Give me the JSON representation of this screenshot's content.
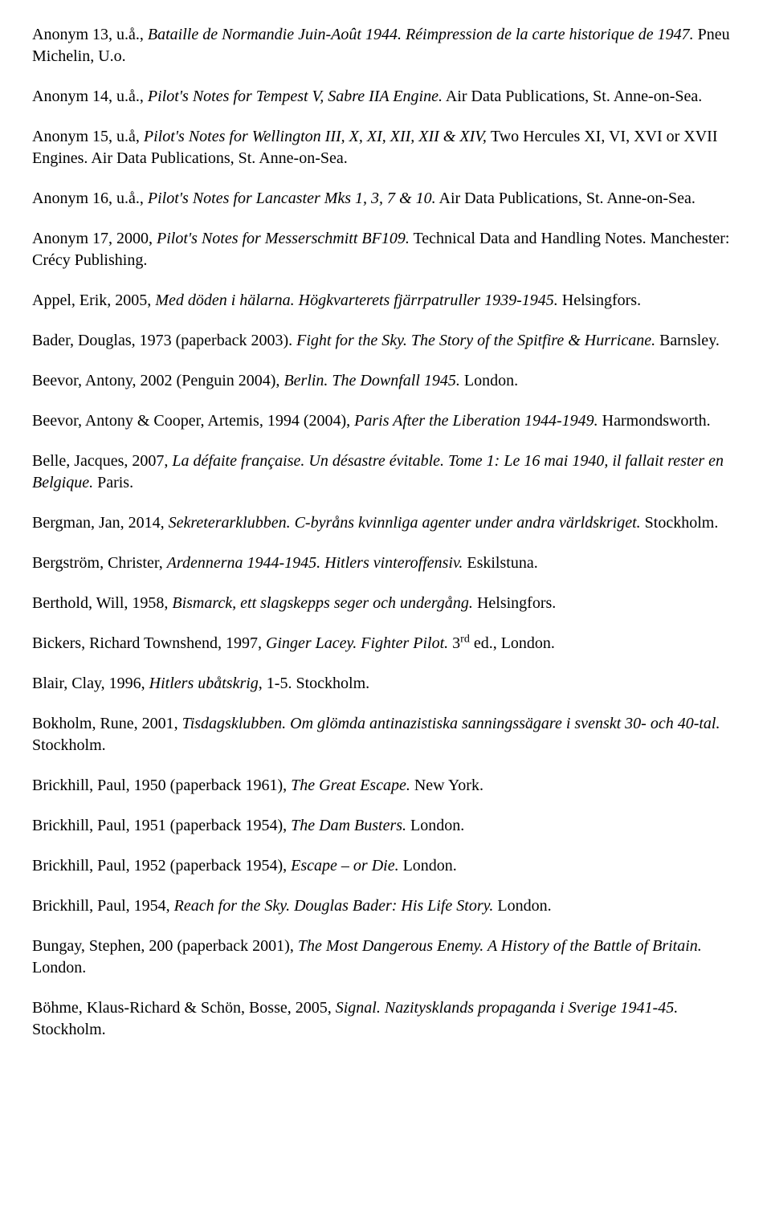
{
  "entries": [
    {
      "segments": [
        {
          "text": "Anonym 13, u.å., ",
          "italic": false
        },
        {
          "text": "Bataille de Normandie Juin-Août 1944. Réimpression de la carte historique de 1947.",
          "italic": true
        },
        {
          "text": " Pneu Michelin, U.o.",
          "italic": false
        }
      ]
    },
    {
      "segments": [
        {
          "text": "Anonym 14, u.å., ",
          "italic": false
        },
        {
          "text": "Pilot's Notes for Tempest V, Sabre IIA Engine.",
          "italic": true
        },
        {
          "text": " Air Data Publications, St. Anne-on-Sea.",
          "italic": false
        }
      ]
    },
    {
      "segments": [
        {
          "text": "Anonym 15, u.å, ",
          "italic": false
        },
        {
          "text": "Pilot's Notes for Wellington III, X, XI, XII, XII & XIV, ",
          "italic": true
        },
        {
          "text": "Two Hercules XI, VI, XVI or XVII Engines. Air Data Publications, St. Anne-on-Sea.",
          "italic": false
        }
      ]
    },
    {
      "segments": [
        {
          "text": "Anonym 16, u.å., ",
          "italic": false
        },
        {
          "text": "Pilot's Notes for Lancaster Mks 1, 3, 7 & 10.",
          "italic": true
        },
        {
          "text": " Air Data Publications, St. Anne-on-Sea.",
          "italic": false
        }
      ]
    },
    {
      "segments": [
        {
          "text": "Anonym 17, 2000, ",
          "italic": false
        },
        {
          "text": "Pilot's Notes for Messerschmitt BF109.",
          "italic": true
        },
        {
          "text": " Technical Data and Handling Notes. Manchester: Crécy Publishing.",
          "italic": false
        }
      ]
    },
    {
      "segments": [
        {
          "text": "Appel, Erik, 2005, ",
          "italic": false
        },
        {
          "text": "Med döden i hälarna. Högkvarterets fjärrpatruller 1939-1945.",
          "italic": true
        },
        {
          "text": " Helsingfors.",
          "italic": false
        }
      ]
    },
    {
      "segments": [
        {
          "text": "Bader, Douglas, 1973 (paperback 2003). ",
          "italic": false
        },
        {
          "text": "Fight for the Sky. The Story of the Spitfire & Hurricane.",
          "italic": true
        },
        {
          "text": " Barnsley.",
          "italic": false
        }
      ]
    },
    {
      "segments": [
        {
          "text": "Beevor, Antony, 2002 (Penguin 2004), ",
          "italic": false
        },
        {
          "text": "Berlin. The Downfall 1945.",
          "italic": true
        },
        {
          "text": " London.",
          "italic": false
        }
      ]
    },
    {
      "segments": [
        {
          "text": "Beevor, Antony & Cooper, Artemis, 1994 (2004), ",
          "italic": false
        },
        {
          "text": "Paris After the Liberation 1944-1949.",
          "italic": true
        },
        {
          "text": " Harmondsworth.",
          "italic": false
        }
      ]
    },
    {
      "segments": [
        {
          "text": "Belle, Jacques, 2007, ",
          "italic": false
        },
        {
          "text": "La défaite française. Un désastre évitable. Tome 1: Le 16 mai 1940, il fallait rester en Belgique.",
          "italic": true
        },
        {
          "text": " Paris.",
          "italic": false
        }
      ]
    },
    {
      "segments": [
        {
          "text": "Bergman, Jan, 2014, ",
          "italic": false
        },
        {
          "text": "Sekreterarklubben. C-byråns kvinnliga agenter under andra världskriget.",
          "italic": true
        },
        {
          "text": " Stockholm.",
          "italic": false
        }
      ]
    },
    {
      "segments": [
        {
          "text": "Bergström, Christer, ",
          "italic": false
        },
        {
          "text": "Ardennerna 1944-1945. Hitlers vinteroffensiv.",
          "italic": true
        },
        {
          "text": " Eskilstuna.",
          "italic": false
        }
      ]
    },
    {
      "segments": [
        {
          "text": "Berthold, Will, 1958, ",
          "italic": false
        },
        {
          "text": "Bismarck, ett slagskepps seger och undergång.",
          "italic": true
        },
        {
          "text": " Helsingfors.",
          "italic": false
        }
      ]
    },
    {
      "segments": [
        {
          "text": "Bickers, Richard Townshend, 1997, ",
          "italic": false
        },
        {
          "text": "Ginger Lacey. Fighter Pilot.",
          "italic": true
        },
        {
          "text": " 3",
          "italic": false
        },
        {
          "text": "rd",
          "italic": false,
          "sup": true
        },
        {
          "text": " ed., London.",
          "italic": false
        }
      ]
    },
    {
      "segments": [
        {
          "text": "Blair, Clay, 1996, ",
          "italic": false
        },
        {
          "text": "Hitlers ubåtskrig",
          "italic": true
        },
        {
          "text": ", 1-5. Stockholm.",
          "italic": false
        }
      ]
    },
    {
      "segments": [
        {
          "text": "Bokholm, Rune, 2001, ",
          "italic": false
        },
        {
          "text": "Tisdagsklubben. Om glömda antinazistiska sanningssägare i svenskt 30- och 40-tal.",
          "italic": true
        },
        {
          "text": " Stockholm.",
          "italic": false
        }
      ]
    },
    {
      "segments": [
        {
          "text": "Brickhill, Paul, 1950 (paperback 1961), ",
          "italic": false
        },
        {
          "text": "The Great Escape.",
          "italic": true
        },
        {
          "text": " New York.",
          "italic": false
        }
      ]
    },
    {
      "segments": [
        {
          "text": "Brickhill, Paul, 1951 (paperback 1954), ",
          "italic": false
        },
        {
          "text": "The Dam Busters.",
          "italic": true
        },
        {
          "text": " London.",
          "italic": false
        }
      ]
    },
    {
      "segments": [
        {
          "text": "Brickhill, Paul, 1952 (paperback 1954), ",
          "italic": false
        },
        {
          "text": "Escape – or Die.",
          "italic": true
        },
        {
          "text": " London.",
          "italic": false
        }
      ]
    },
    {
      "segments": [
        {
          "text": "Brickhill, Paul, 1954, ",
          "italic": false
        },
        {
          "text": "Reach for the Sky. Douglas Bader: His Life Story.",
          "italic": true
        },
        {
          "text": " London.",
          "italic": false
        }
      ]
    },
    {
      "segments": [
        {
          "text": "Bungay, Stephen, 200 (paperback 2001), ",
          "italic": false
        },
        {
          "text": "The Most Dangerous Enemy. A History of the Battle of Britain.",
          "italic": true
        },
        {
          "text": " London.",
          "italic": false
        }
      ]
    },
    {
      "segments": [
        {
          "text": "Böhme, Klaus-Richard & Schön, Bosse, 2005, ",
          "italic": false
        },
        {
          "text": "Signal. Nazitysklands propaganda i Sverige 1941-45.",
          "italic": true
        },
        {
          "text": " Stockholm.",
          "italic": false
        }
      ]
    }
  ]
}
